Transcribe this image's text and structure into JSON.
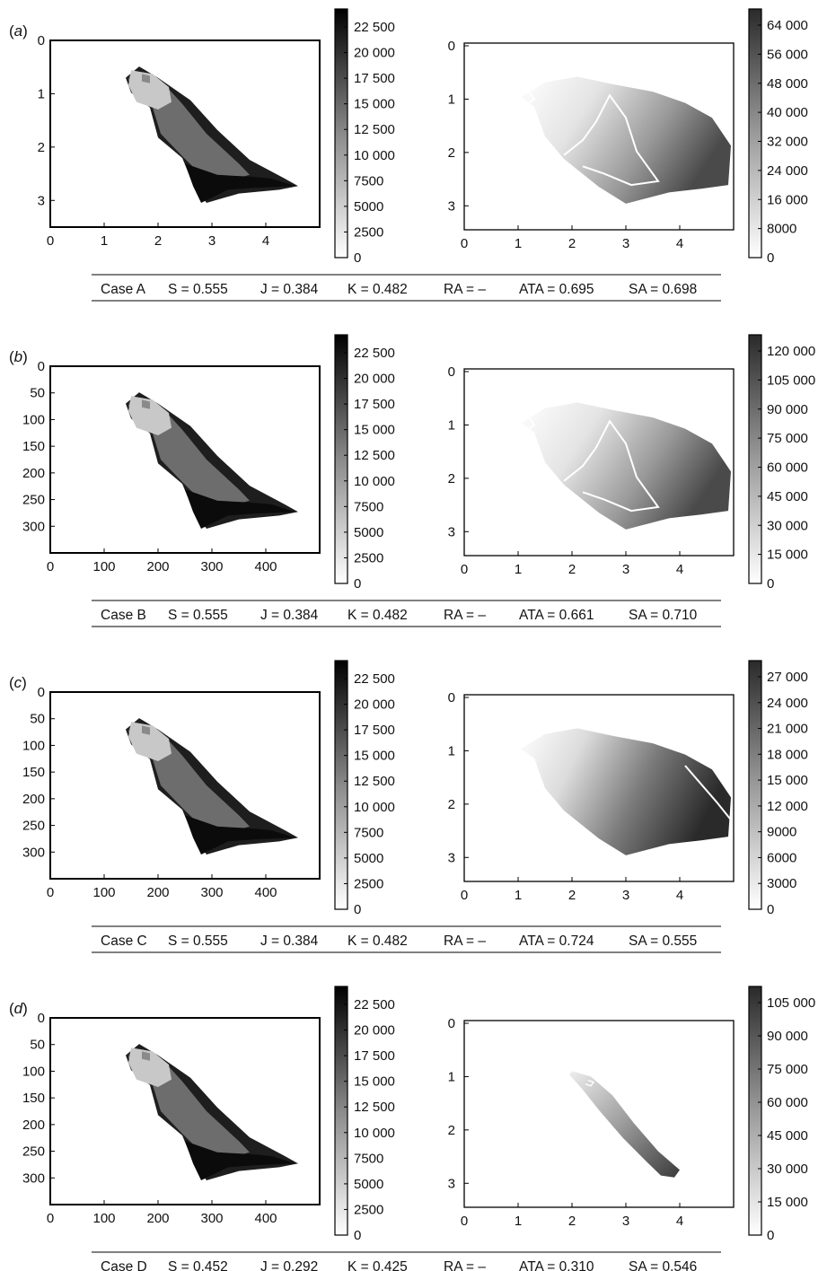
{
  "panels": [
    {
      "label": "a",
      "left": {
        "xticks": [
          "0",
          "1",
          "2",
          "3",
          "4"
        ],
        "yticks": [
          "0",
          "1",
          "2",
          "3"
        ],
        "colorbar": [
          "22 500",
          "20 000",
          "17 500",
          "15 000",
          "12 500",
          "10 000",
          "7500",
          "5000",
          "2500",
          "0"
        ]
      },
      "right": {
        "xticks": [
          "0",
          "1",
          "2",
          "3",
          "4"
        ],
        "yticks": [
          "0",
          "1",
          "2",
          "3"
        ],
        "colorbar": [
          "64 000",
          "56 000",
          "48 000",
          "40 000",
          "32 000",
          "24 000",
          "16 000",
          "8000",
          "0"
        ]
      },
      "caption": [
        "Case A",
        "S = 0.555",
        "J = 0.384",
        "K = 0.482",
        "RA = –",
        "ATA = 0.695",
        "SA = 0.698"
      ]
    },
    {
      "label": "b",
      "left": {
        "xticks": [
          "0",
          "100",
          "200",
          "300",
          "400"
        ],
        "yticks": [
          "0",
          "50",
          "100",
          "150",
          "200",
          "250",
          "300"
        ],
        "colorbar": [
          "22 500",
          "20 000",
          "17 500",
          "15 000",
          "12 500",
          "10 000",
          "7500",
          "5000",
          "2500",
          "0"
        ]
      },
      "right": {
        "xticks": [
          "0",
          "1",
          "2",
          "3",
          "4"
        ],
        "yticks": [
          "0",
          "1",
          "2",
          "3"
        ],
        "colorbar": [
          "120 000",
          "105 000",
          "90 000",
          "75 000",
          "60 000",
          "45 000",
          "30 000",
          "15 000",
          "0"
        ]
      },
      "caption": [
        "Case B",
        "S = 0.555",
        "J = 0.384",
        "K = 0.482",
        "RA = –",
        "ATA = 0.661",
        "SA = 0.710"
      ]
    },
    {
      "label": "c",
      "left": {
        "xticks": [
          "0",
          "100",
          "200",
          "300",
          "400"
        ],
        "yticks": [
          "0",
          "50",
          "100",
          "150",
          "200",
          "250",
          "300"
        ],
        "colorbar": [
          "22 500",
          "20 000",
          "17 500",
          "15 000",
          "12 500",
          "10 000",
          "7500",
          "5000",
          "2500",
          "0"
        ]
      },
      "right": {
        "xticks": [
          "0",
          "1",
          "2",
          "3",
          "4"
        ],
        "yticks": [
          "0",
          "1",
          "2",
          "3"
        ],
        "colorbar": [
          "27 000",
          "24 000",
          "21 000",
          "18 000",
          "15 000",
          "12 000",
          "9000",
          "6000",
          "3000",
          "0"
        ]
      },
      "caption": [
        "Case C",
        "S = 0.555",
        "J = 0.384",
        "K = 0.482",
        "RA = –",
        "ATA = 0.724",
        "SA = 0.555"
      ]
    },
    {
      "label": "d",
      "left": {
        "xticks": [
          "0",
          "100",
          "200",
          "300",
          "400"
        ],
        "yticks": [
          "0",
          "50",
          "100",
          "150",
          "200",
          "250",
          "300"
        ],
        "colorbar": [
          "22 500",
          "20 000",
          "17 500",
          "15 000",
          "12 500",
          "10 000",
          "7500",
          "5000",
          "2500",
          "0"
        ]
      },
      "right": {
        "xticks": [
          "0",
          "1",
          "2",
          "3",
          "4"
        ],
        "yticks": [
          "0",
          "1",
          "2",
          "3"
        ],
        "colorbar": [
          "105 000",
          "90 000",
          "75 000",
          "60 000",
          "45 000",
          "30 000",
          "15 000",
          "0"
        ]
      },
      "caption": [
        "Case D",
        "S = 0.452",
        "J = 0.292",
        "K = 0.425",
        "RA = –",
        "ATA = 0.310",
        "SA = 0.546"
      ]
    }
  ],
  "chart_data": [
    {
      "type": "heatmap",
      "panel": "a-left",
      "xlim": [
        0,
        5
      ],
      "ylim": [
        3.5,
        0
      ],
      "colorbar_range": [
        0,
        22500
      ]
    },
    {
      "type": "heatmap",
      "panel": "a-right",
      "xlim": [
        0,
        5
      ],
      "ylim": [
        3.5,
        0
      ],
      "colorbar_range": [
        0,
        64000
      ]
    },
    {
      "type": "heatmap",
      "panel": "b-left",
      "xlim": [
        0,
        500
      ],
      "ylim": [
        350,
        0
      ],
      "colorbar_range": [
        0,
        22500
      ]
    },
    {
      "type": "heatmap",
      "panel": "b-right",
      "xlim": [
        0,
        5
      ],
      "ylim": [
        3.5,
        0
      ],
      "colorbar_range": [
        0,
        120000
      ]
    },
    {
      "type": "heatmap",
      "panel": "c-left",
      "xlim": [
        0,
        500
      ],
      "ylim": [
        350,
        0
      ],
      "colorbar_range": [
        0,
        22500
      ]
    },
    {
      "type": "heatmap",
      "panel": "c-right",
      "xlim": [
        0,
        5
      ],
      "ylim": [
        3.5,
        0
      ],
      "colorbar_range": [
        0,
        27000
      ]
    },
    {
      "type": "heatmap",
      "panel": "d-left",
      "xlim": [
        0,
        500
      ],
      "ylim": [
        350,
        0
      ],
      "colorbar_range": [
        0,
        22500
      ]
    },
    {
      "type": "heatmap",
      "panel": "d-right",
      "xlim": [
        0,
        5
      ],
      "ylim": [
        3.5,
        0
      ],
      "colorbar_range": [
        0,
        105000
      ]
    }
  ]
}
